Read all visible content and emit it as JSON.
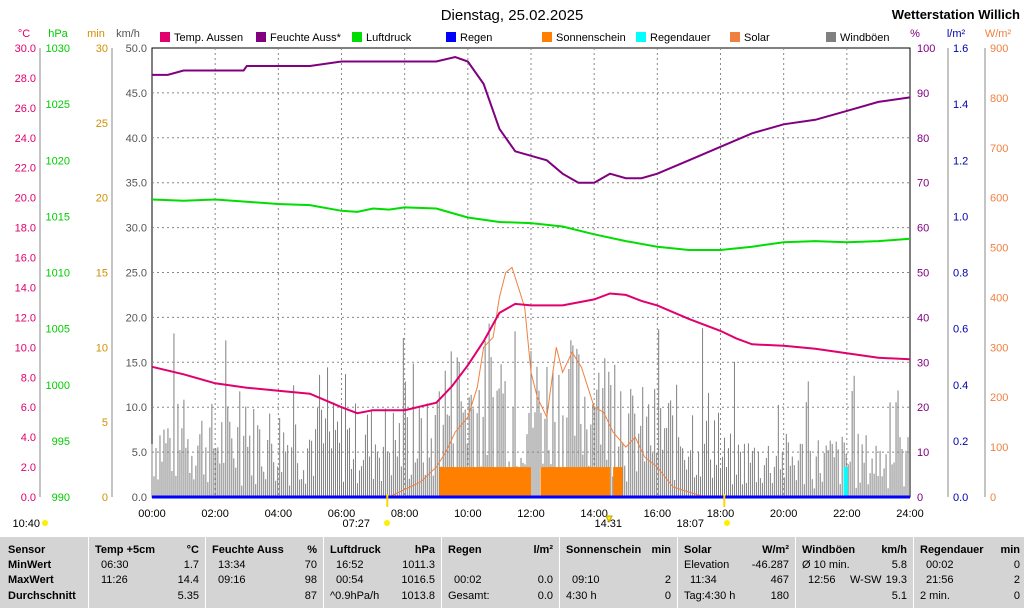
{
  "header": {
    "date": "Dienstag, 25.02.2025",
    "station": "Wetterstation Willich"
  },
  "axis_titles": {
    "temp": "°C",
    "pressure": "hPa",
    "duration": "min",
    "wind": "km/h",
    "humidity": "%",
    "rain": "l/m²",
    "solar": "W/m²"
  },
  "colors": {
    "temp": "#e0006e",
    "humidity": "#800080",
    "pressure": "#00dd00",
    "rain": "#0000ff",
    "sunshine": "#ff8000",
    "rain_duration": "#00ffff",
    "solar": "#f08040",
    "gust": "#808080",
    "station": "#ff0000",
    "axis_temp": "#e0006e",
    "axis_pressure": "#00cc00",
    "axis_duration": "#d09000",
    "axis_wind": "#555555",
    "axis_humidity": "#800080",
    "axis_rain": "#0000aa",
    "axis_solar": "#f08040"
  },
  "chart_data": {
    "type": "line",
    "x_unit": "hour",
    "xlim": [
      0,
      24
    ],
    "x_ticks": [
      "00:00",
      "02:00",
      "04:00",
      "06:00",
      "08:00",
      "10:00",
      "12:00",
      "14:00",
      "16:00",
      "18:00",
      "20:00",
      "22:00",
      "24:00"
    ],
    "axes": {
      "temp": {
        "min": 0,
        "max": 30,
        "step": 2,
        "decimals": 1,
        "labels": [
          "0.0",
          "2.0",
          "4.0",
          "6.0",
          "8.0",
          "10.0",
          "12.0",
          "14.0",
          "16.0",
          "18.0",
          "20.0",
          "22.0",
          "24.0",
          "26.0",
          "28.0",
          "30.0"
        ]
      },
      "pressure": {
        "min": 990,
        "max": 1030,
        "step": 5,
        "labels": [
          "990",
          "995",
          "1000",
          "1005",
          "1010",
          "1015",
          "1020",
          "1025",
          "1030"
        ]
      },
      "duration": {
        "min": 0,
        "max": 30,
        "step": 5,
        "labels": [
          "0",
          "5",
          "10",
          "15",
          "20",
          "25",
          "30"
        ]
      },
      "wind": {
        "min": 0,
        "max": 50,
        "step": 5,
        "labels": [
          "0.0",
          "5.0",
          "10.0",
          "15.0",
          "20.0",
          "25.0",
          "30.0",
          "35.0",
          "40.0",
          "45.0",
          "50.0"
        ]
      },
      "humidity": {
        "min": 0,
        "max": 100,
        "step": 10,
        "labels": [
          "0",
          "10",
          "20",
          "30",
          "40",
          "50",
          "60",
          "70",
          "80",
          "90",
          "100"
        ]
      },
      "rain": {
        "min": 0,
        "max": 1.6,
        "step": 0.2,
        "labels": [
          "0.0",
          "0.2",
          "0.4",
          "0.6",
          "0.8",
          "1.0",
          "1.2",
          "1.4",
          "1.6"
        ]
      },
      "solar": {
        "min": 0,
        "max": 900,
        "step": 100,
        "labels": [
          "0",
          "100",
          "200",
          "300",
          "400",
          "500",
          "600",
          "700",
          "800",
          "900"
        ]
      }
    },
    "series": [
      {
        "key": "temp",
        "name": "Temp. Aussen",
        "axis": "temp",
        "x": [
          0,
          1,
          2,
          3,
          4,
          5,
          6,
          6.5,
          7,
          8,
          9,
          9.5,
          10,
          10.5,
          11,
          11.5,
          12,
          13,
          14,
          14.5,
          15,
          15.5,
          16,
          17,
          18,
          18.5,
          19,
          20,
          21,
          22,
          23,
          24
        ],
        "y": [
          8.7,
          8.2,
          7.6,
          7.3,
          7.1,
          6.9,
          6.0,
          5.6,
          5.8,
          5.8,
          6.3,
          7.4,
          8.8,
          10.4,
          12.3,
          12.9,
          12.8,
          12.8,
          13.2,
          13.6,
          13.5,
          13.1,
          12.8,
          11.9,
          11.1,
          10.6,
          10.2,
          10.1,
          9.9,
          9.6,
          9.3,
          9.2
        ]
      },
      {
        "key": "humidity",
        "name": "Feuchte Auss*",
        "axis": "humidity",
        "x": [
          0,
          0.5,
          1,
          2,
          2.9,
          3,
          4,
          5,
          6,
          7,
          8,
          8.5,
          9,
          9.6,
          10,
          10.5,
          11,
          11.5,
          12,
          12.5,
          13,
          13.5,
          14,
          14.5,
          15,
          15.5,
          16,
          17,
          18,
          19,
          19.5,
          20,
          21,
          22,
          23,
          24
        ],
        "y": [
          94,
          94,
          95,
          95,
          95,
          96,
          96,
          96,
          97,
          97,
          97,
          97,
          97,
          98,
          97,
          92,
          82,
          77,
          76,
          75,
          72,
          70,
          70,
          72,
          71,
          71,
          72,
          75,
          78,
          81,
          82,
          83,
          84,
          86,
          88,
          89
        ]
      },
      {
        "key": "pressure",
        "name": "Luftdruck",
        "axis": "pressure",
        "x": [
          0,
          1,
          2,
          3,
          4,
          5,
          6,
          6.5,
          7,
          7.5,
          8,
          9,
          9.5,
          10,
          11,
          12,
          13,
          14,
          15,
          16,
          17,
          18,
          19,
          20,
          21,
          22,
          23,
          24
        ],
        "y": [
          1016.5,
          1016.4,
          1016.5,
          1016.3,
          1016.1,
          1016.0,
          1015.5,
          1015.4,
          1015.7,
          1015.6,
          1015.8,
          1015.7,
          1015.3,
          1014.9,
          1014.5,
          1014.4,
          1014.1,
          1013.4,
          1012.8,
          1012.3,
          1012.0,
          1012.0,
          1012.3,
          1012.7,
          1012.8,
          1012.7,
          1012.8,
          1013.0
        ]
      },
      {
        "key": "rain",
        "name": "Regen",
        "axis": "rain",
        "x": [
          0,
          24
        ],
        "y": [
          0,
          0
        ]
      },
      {
        "key": "sunshine",
        "name": "Sonnenschein",
        "axis": "duration",
        "blocks": [
          [
            9.1,
            12.0
          ],
          [
            12.3,
            14.5
          ],
          [
            14.6,
            14.9
          ]
        ],
        "value": 2
      },
      {
        "key": "rain_duration",
        "name": "Regendauer",
        "axis": "duration",
        "x": [
          21.9
        ],
        "y": [
          2
        ]
      },
      {
        "key": "solar",
        "name": "Solar",
        "axis": "solar",
        "x": [
          7.5,
          8,
          8.5,
          9,
          9.3,
          9.6,
          10,
          10.3,
          10.5,
          10.8,
          11,
          11.2,
          11.4,
          11.6,
          11.8,
          12,
          12.2,
          12.5,
          12.8,
          13,
          13.3,
          13.6,
          14,
          14.3,
          14.6,
          15,
          15.3,
          15.6,
          16,
          16.5,
          17,
          17.5,
          18
        ],
        "y": [
          0,
          15,
          30,
          60,
          90,
          130,
          160,
          220,
          300,
          320,
          400,
          450,
          460,
          420,
          380,
          250,
          200,
          160,
          300,
          250,
          290,
          260,
          180,
          170,
          130,
          100,
          120,
          80,
          60,
          20,
          10,
          0,
          0
        ]
      },
      {
        "key": "gust",
        "name": "Windböen",
        "axis": "wind"
      }
    ]
  },
  "markers": {
    "sunrise_left": "10:40",
    "sunrise": "07:27",
    "sunset": "18:07",
    "midday": "14:31"
  },
  "stats": {
    "sensor": {
      "label": "Sensor",
      "min": "MinWert",
      "max": "MaxWert",
      "avg": "Durchschnitt"
    },
    "temp": {
      "title": "Temp +5cm",
      "unit": "°C",
      "min_time": "06:30",
      "min_val": "1.7",
      "max_time": "11:26",
      "max_val": "14.4",
      "avg": "5.35"
    },
    "humidity": {
      "title": "Feuchte Auss",
      "unit": "%",
      "min_time": "13:34",
      "min_val": "70",
      "max_time": "09:16",
      "max_val": "98",
      "avg": "87"
    },
    "pressure": {
      "title": "Luftdruck",
      "unit": "hPa",
      "min_time": "16:52",
      "min_val": "1011.3",
      "max_time": "00:54",
      "max_val": "1016.5",
      "trend": "^0.9hPa/h",
      "avg": "1013.8"
    },
    "rain": {
      "title": "Regen",
      "unit": "l/m²",
      "max_time": "00:02",
      "max_val": "0.0",
      "total_label": "Gesamt:",
      "total_val": "0.0"
    },
    "sunshine": {
      "title": "Sonnenschein",
      "unit": "min",
      "max_time": "09:10",
      "max_val": "2",
      "total_label": "4:30 h",
      "total_val": "0"
    },
    "solar": {
      "title": "Solar",
      "unit": "W/m²",
      "elev_label": "Elevation",
      "elev_val": "-46.287",
      "max_time": "11:34",
      "max_val": "467",
      "day_label": "Tag:4:30 h",
      "day_val": "180"
    },
    "gust": {
      "title": "Windböen",
      "unit": "km/h",
      "avg10_label": "Ø 10 min.",
      "avg10_val": "5.8",
      "max_time": "12:56",
      "max_dir": "W-SW",
      "max_val": "19.3",
      "avg_val": "5.1"
    },
    "rain_duration": {
      "title": "Regendauer",
      "unit": "min",
      "min_time": "00:02",
      "min_val": "0",
      "max_time": "21:56",
      "max_val": "2",
      "avg_label": "2 min.",
      "avg_val": "0"
    }
  }
}
